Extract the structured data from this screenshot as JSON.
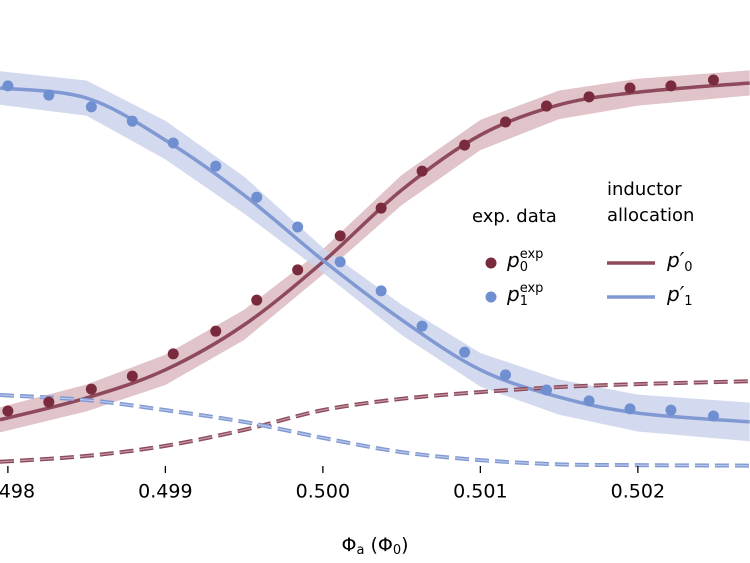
{
  "chart_data": {
    "type": "line",
    "xlabel": [
      "Φ",
      "a",
      " (Φ",
      "0",
      ")"
    ],
    "xlim": [
      0.49795,
      0.502712
    ],
    "ylim": [
      0,
      1.1
    ],
    "xticks": [
      0.498,
      0.499,
      {
        "value": 0.5,
        "label": "0.500"
      },
      0.501,
      0.502
    ],
    "legend_titles": {
      "data": "exp. data",
      "fit": [
        "inductor",
        "allocation"
      ]
    },
    "points": {
      "x": [
        0.498,
        0.49826,
        0.49853,
        0.49879,
        0.49905,
        0.49932,
        0.49958,
        0.49984,
        0.50011,
        0.50037,
        0.50063,
        0.5009,
        0.50116,
        0.50142,
        0.50169,
        0.50195,
        0.50221,
        0.50248
      ],
      "series": [
        {
          "name": "p",
          "name_sub": "0",
          "name_sup": "exp",
          "color": "#7a2a3d",
          "values": [
            0.131,
            0.152,
            0.183,
            0.214,
            0.267,
            0.321,
            0.395,
            0.467,
            0.548,
            0.614,
            0.702,
            0.764,
            0.819,
            0.857,
            0.879,
            0.9,
            0.905,
            0.919
          ]
        },
        {
          "name": "p",
          "name_sub": "1",
          "name_sup": "exp",
          "color": "#6f8fd0",
          "values": [
            0.905,
            0.883,
            0.855,
            0.821,
            0.769,
            0.714,
            0.64,
            0.569,
            0.486,
            0.417,
            0.333,
            0.271,
            0.217,
            0.181,
            0.155,
            0.136,
            0.133,
            0.119
          ]
        }
      ]
    },
    "lines": {
      "x": [
        0.49795,
        0.4985,
        0.499,
        0.4995,
        0.5,
        0.5005,
        0.501,
        0.5015,
        0.502,
        0.50271
      ],
      "series": [
        {
          "name": "p′",
          "name_sub": "0",
          "color": "#8e4a5c",
          "band_color": "#dcb9c1",
          "values": [
            0.11,
            0.162,
            0.229,
            0.336,
            0.486,
            0.657,
            0.788,
            0.86,
            0.89,
            0.912
          ],
          "error": [
            0.03,
            0.032,
            0.036,
            0.036,
            0.03,
            0.036,
            0.036,
            0.034,
            0.032,
            0.03
          ]
        },
        {
          "name": "p′",
          "name_sub": "1",
          "color": "#8099d3",
          "band_color": "#cbd3ec",
          "values": [
            0.9,
            0.876,
            0.776,
            0.645,
            0.49,
            0.348,
            0.229,
            0.164,
            0.126,
            0.105
          ],
          "error": [
            0.04,
            0.042,
            0.046,
            0.044,
            0.03,
            0.036,
            0.04,
            0.042,
            0.044,
            0.046
          ]
        },
        {
          "color": "#8e4a5c",
          "dashed": true,
          "values": [
            0.01,
            0.024,
            0.048,
            0.086,
            0.133,
            0.16,
            0.176,
            0.188,
            0.195,
            0.202
          ]
        },
        {
          "color": "#8099d3",
          "dashed": true,
          "values": [
            0.169,
            0.157,
            0.133,
            0.105,
            0.067,
            0.033,
            0.014,
            0.004,
            0.002,
            0.001
          ]
        }
      ]
    }
  }
}
